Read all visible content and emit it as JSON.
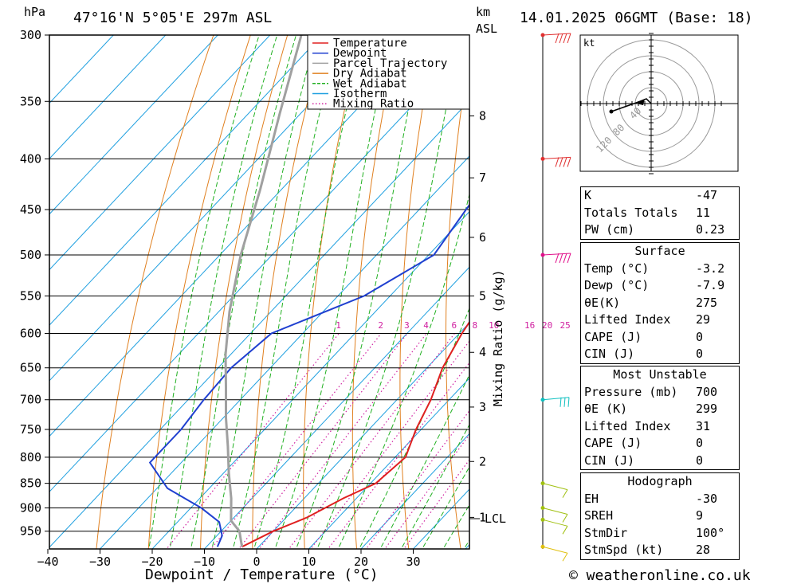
{
  "header": {
    "pressure_unit": "hPa",
    "location": "47°16'N  5°05'E  297m  ASL",
    "height_unit_km": "km",
    "height_unit_asl": "ASL",
    "datetime": "14.01.2025 06GMT (Base: 18)"
  },
  "chart_data": {
    "type": "line",
    "subtype": "skew-T log-P",
    "xlabel": "Dewpoint / Temperature (°C)",
    "ylabel_left": "hPa",
    "ylabel_right_inner": "Mixing Ratio (g/kg)",
    "x_ticks": [
      -40,
      -30,
      -20,
      -10,
      0,
      10,
      20,
      30
    ],
    "x_range": [
      -40,
      40
    ],
    "y_ticks": [
      300,
      350,
      400,
      450,
      500,
      550,
      600,
      650,
      700,
      750,
      800,
      850,
      900,
      950
    ],
    "y_range": [
      300,
      990
    ],
    "y_scale": "log",
    "km_ticks": [
      {
        "km": "1",
        "p": 920
      },
      {
        "km": "2",
        "p": 808
      },
      {
        "km": "3",
        "p": 712
      },
      {
        "km": "4",
        "p": 627
      },
      {
        "km": "5",
        "p": 550
      },
      {
        "km": "6",
        "p": 480
      },
      {
        "km": "7",
        "p": 418
      },
      {
        "km": "8",
        "p": 362
      }
    ],
    "lcl_label": "LCL",
    "lcl_pressure": 927,
    "mixing_ratio_labels": [
      "1",
      "2",
      "3",
      "4",
      "6",
      "8",
      "10",
      "16",
      "20",
      "25"
    ],
    "mixing_ratio_values": [
      1,
      2,
      3,
      4,
      6,
      8,
      10,
      16,
      20,
      25
    ],
    "legend": {
      "placement": "top-right",
      "entries": [
        {
          "name": "Temperature",
          "color": "#e02020",
          "style": "solid"
        },
        {
          "name": "Dewpoint",
          "color": "#2040d0",
          "style": "solid"
        },
        {
          "name": "Parcel Trajectory",
          "color": "#a0a0a0",
          "style": "solid"
        },
        {
          "name": "Dry Adiabat",
          "color": "#e08020",
          "style": "solid"
        },
        {
          "name": "Wet Adiabat",
          "color": "#20b020",
          "style": "dashed"
        },
        {
          "name": "Isotherm",
          "color": "#20a0e0",
          "style": "solid"
        },
        {
          "name": "Mixing Ratio",
          "color": "#d020a0",
          "style": "dotted"
        }
      ]
    },
    "series": [
      {
        "name": "Temperature",
        "points": [
          [
            -3.2,
            985
          ],
          [
            0,
            950
          ],
          [
            4,
            920
          ],
          [
            7.5,
            880
          ],
          [
            11,
            850
          ],
          [
            12,
            800
          ],
          [
            9,
            750
          ],
          [
            6.5,
            700
          ],
          [
            3,
            650
          ],
          [
            0.5,
            600
          ],
          [
            -1.5,
            550
          ],
          [
            -5.5,
            500
          ],
          [
            -10.5,
            450
          ],
          [
            -15.5,
            400
          ],
          [
            -22.5,
            350
          ],
          [
            -30,
            300
          ]
        ]
      },
      {
        "name": "Dewpoint",
        "points": [
          [
            -7.9,
            985
          ],
          [
            -9,
            960
          ],
          [
            -12,
            930
          ],
          [
            -18,
            900
          ],
          [
            -28,
            860
          ],
          [
            -36,
            810
          ],
          [
            -36,
            750
          ],
          [
            -37,
            700
          ],
          [
            -37.5,
            650
          ],
          [
            -36,
            600
          ],
          [
            -25,
            550
          ],
          [
            -19,
            500
          ],
          [
            -21,
            450
          ],
          [
            -23,
            400
          ],
          [
            -33,
            350
          ],
          [
            -36,
            300
          ]
        ]
      },
      {
        "name": "Parcel Trajectory",
        "points": [
          [
            -3.2,
            985
          ],
          [
            -6.5,
            950
          ],
          [
            -10,
            927
          ],
          [
            -14,
            880
          ],
          [
            -19,
            830
          ],
          [
            -24,
            780
          ],
          [
            -29.5,
            730
          ],
          [
            -35,
            680
          ],
          [
            -41,
            630
          ],
          [
            -48,
            570
          ],
          [
            -56,
            500
          ],
          [
            -64,
            430
          ],
          [
            -74,
            360
          ],
          [
            -84,
            300
          ]
        ]
      }
    ]
  },
  "hodograph": {
    "unit": "kt",
    "ring_labels": [
      "40",
      "80",
      "120"
    ]
  },
  "wind_barbs": [
    {
      "p": 300,
      "color": "#e03030"
    },
    {
      "p": 400,
      "color": "#e03030"
    },
    {
      "p": 500,
      "color": "#e0108a"
    },
    {
      "p": 700,
      "color": "#10c0c0"
    },
    {
      "p": 850,
      "color": "#a0c010"
    },
    {
      "p": 900,
      "color": "#a0c010"
    },
    {
      "p": 925,
      "color": "#a0c010"
    },
    {
      "p": 985,
      "color": "#e0c010"
    }
  ],
  "indices": {
    "k_label": "K",
    "k": "-47",
    "tt_label": "Totals Totals",
    "tt": "11",
    "pw_label": "PW (cm)",
    "pw": "0.23"
  },
  "surface": {
    "title": "Surface",
    "temp_label": "Temp (°C)",
    "temp": "-3.2",
    "dewp_label": "Dewp (°C)",
    "dewp": "-7.9",
    "theta_label": "θE(K)",
    "theta": "275",
    "li_label": "Lifted Index",
    "li": "29",
    "cape_label": "CAPE (J)",
    "cape": "0",
    "cin_label": "CIN (J)",
    "cin": "0"
  },
  "most_unstable": {
    "title": "Most Unstable",
    "pressure_label": "Pressure (mb)",
    "pressure": "700",
    "theta_label": "θE (K)",
    "theta": "299",
    "li_label": "Lifted Index",
    "li": "31",
    "cape_label": "CAPE (J)",
    "cape": "0",
    "cin_label": "CIN (J)",
    "cin": "0"
  },
  "hodograph_table": {
    "title": "Hodograph",
    "eh_label": "EH",
    "eh": "-30",
    "sreh_label": "SREH",
    "sreh": "9",
    "stmdir_label": "StmDir",
    "stmdir": "100°",
    "stmspd_label": "StmSpd (kt)",
    "stmspd": "28"
  },
  "footer": {
    "copyright": "© weatheronline.co.uk"
  }
}
